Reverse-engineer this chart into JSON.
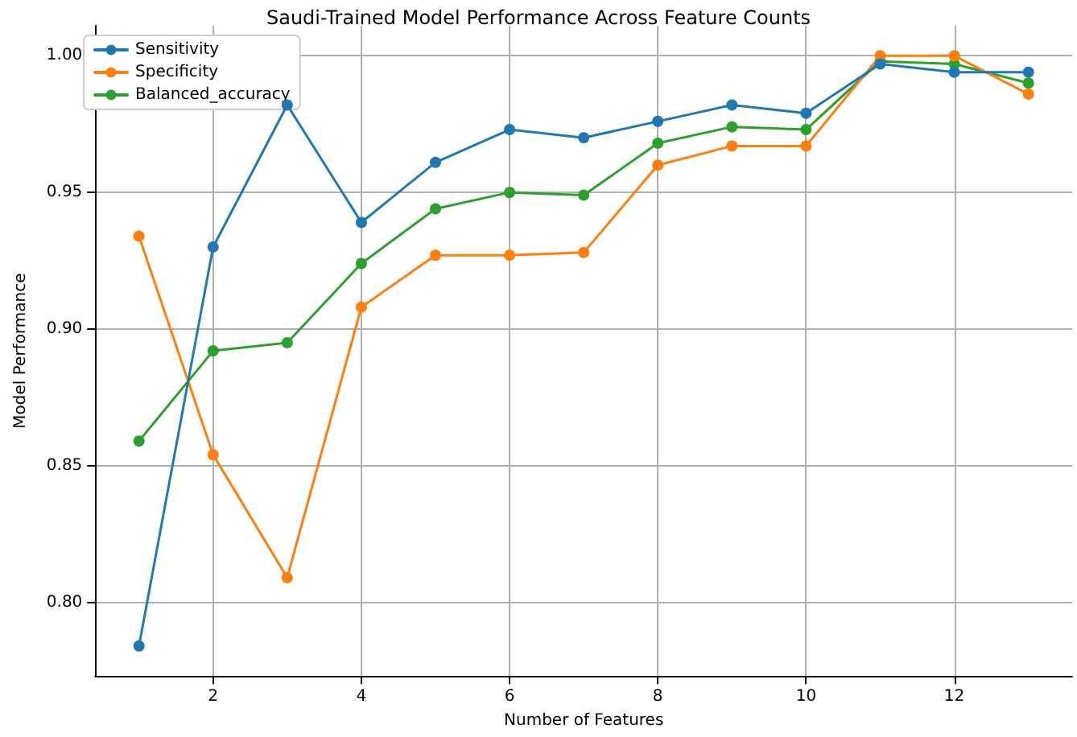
{
  "chart_data": {
    "type": "line",
    "title": "Saudi-Trained Model Performance Across Feature Counts",
    "xlabel": "Number of Features",
    "ylabel": "Model Performance",
    "x": [
      1,
      2,
      3,
      4,
      5,
      6,
      7,
      8,
      9,
      10,
      11,
      12,
      13
    ],
    "series": [
      {
        "name": "Sensitivity",
        "color": "#1f77b4",
        "values": [
          0.784,
          0.93,
          0.982,
          0.939,
          0.961,
          0.973,
          0.97,
          0.976,
          0.982,
          0.979,
          0.997,
          0.994,
          0.994
        ]
      },
      {
        "name": "Specificity",
        "color": "#ff7f0e",
        "values": [
          0.934,
          0.854,
          0.809,
          0.908,
          0.927,
          0.927,
          0.928,
          0.96,
          0.967,
          0.967,
          1.0,
          1.0,
          0.986
        ]
      },
      {
        "name": "Balanced_accuracy",
        "color": "#2ca02c",
        "values": [
          0.859,
          0.892,
          0.895,
          0.924,
          0.944,
          0.95,
          0.949,
          0.968,
          0.974,
          0.973,
          0.998,
          0.997,
          0.99
        ]
      }
    ],
    "xlim": [
      0.41,
      13.59
    ],
    "ylim": [
      0.773,
      1.011
    ],
    "xticks": [
      2,
      4,
      6,
      8,
      10,
      12
    ],
    "yticks": [
      {
        "value": 0.8,
        "label": "0.80"
      },
      {
        "value": 0.85,
        "label": "0.85"
      },
      {
        "value": 0.9,
        "label": "0.90"
      },
      {
        "value": 0.95,
        "label": "0.95"
      },
      {
        "value": 1.0,
        "label": "1.00"
      }
    ],
    "grid": true,
    "legend": "top left",
    "marker": "circle",
    "line_style": "solid"
  }
}
